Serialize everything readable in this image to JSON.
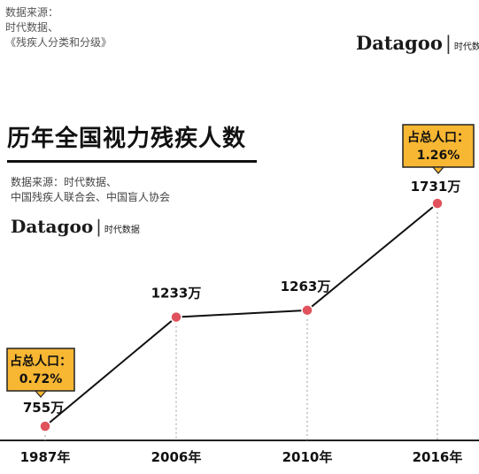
{
  "header": {
    "source_lines": [
      "数据来源：",
      "时代数据、",
      "《残疾人分类和分级》"
    ],
    "brand_name": "Datagoo",
    "brand_sep": "|",
    "brand_sub": "时代数据"
  },
  "chart_data": {
    "type": "line",
    "title": "历年全国视力残疾人数",
    "source_lines": [
      "数据来源：时代数据、",
      "中国残疾人联合会、中国盲人协会"
    ],
    "categories": [
      "1987年",
      "2006年",
      "2010年",
      "2016年"
    ],
    "values": [
      755,
      1233,
      1263,
      1731
    ],
    "value_labels": [
      "755万",
      "1233万",
      "1263万",
      "1731万"
    ],
    "unit": "万",
    "ylim": [
      700,
      1800
    ],
    "grid": false,
    "colors": {
      "line": "#111111",
      "marker": "#e0525c",
      "callout": "#f7b733",
      "guide": "#999999"
    },
    "callouts": [
      {
        "index": 0,
        "lines": [
          "占总人口：",
          "0.72%"
        ]
      },
      {
        "index": 3,
        "lines": [
          "占总人口：",
          "1.26%"
        ]
      }
    ]
  }
}
